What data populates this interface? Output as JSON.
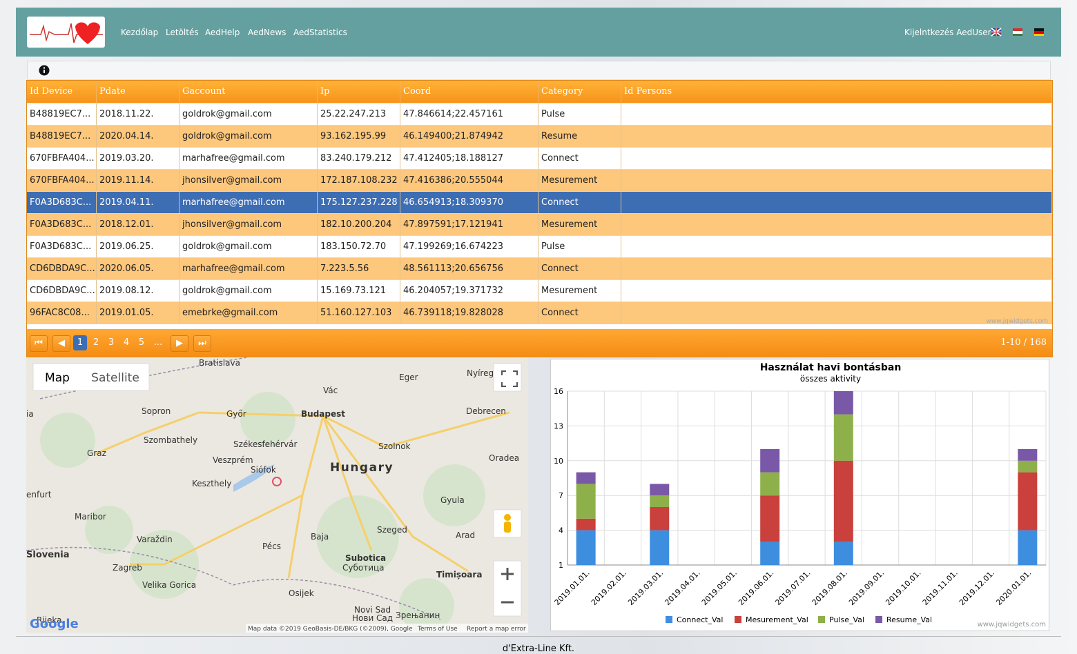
{
  "nav": {
    "links": [
      "Kezdőlap",
      "Letöltés",
      "AedHelp",
      "AedNews",
      "AedStatistics"
    ],
    "logout": "Kijelntkezés AedUser"
  },
  "table": {
    "columns": [
      "Id Device",
      "Pdate",
      "Gaccount",
      "Ip",
      "Coord",
      "Category",
      "Id Persons"
    ],
    "rows": [
      [
        "B48819EC7...",
        "2018.11.22.",
        "goldrok@gmail.com",
        "25.22.247.213",
        "47.846614;22.457161",
        "Pulse",
        ""
      ],
      [
        "B48819EC7...",
        "2020.04.14.",
        "goldrok@gmail.com",
        "93.162.195.99",
        "46.149400;21.874942",
        "Resume",
        ""
      ],
      [
        "670FBFA404...",
        "2019.03.20.",
        "marhafree@gmail.com",
        "83.240.179.212",
        "47.412405;18.188127",
        "Connect",
        ""
      ],
      [
        "670FBFA404...",
        "2019.11.14.",
        "jhonsilver@gmail.com",
        "172.187.108.232",
        "47.416386;20.555044",
        "Mesurement",
        ""
      ],
      [
        "F0A3D683C...",
        "2019.04.11.",
        "marhafree@gmail.com",
        "175.127.237.228",
        "46.654913;18.309370",
        "Connect",
        ""
      ],
      [
        "F0A3D683C...",
        "2018.12.01.",
        "jhonsilver@gmail.com",
        "182.10.200.204",
        "47.897591;17.121941",
        "Mesurement",
        ""
      ],
      [
        "F0A3D683C...",
        "2019.06.25.",
        "goldrok@gmail.com",
        "183.150.72.70",
        "47.199269;16.674223",
        "Pulse",
        ""
      ],
      [
        "CD6DBDA9C...",
        "2020.06.05.",
        "marhafree@gmail.com",
        "7.223.5.56",
        "48.561113;20.656756",
        "Connect",
        ""
      ],
      [
        "CD6DBDA9C...",
        "2019.08.12.",
        "goldrok@gmail.com",
        "15.169.73.121",
        "46.204057;19.371732",
        "Mesurement",
        ""
      ],
      [
        "96FAC8C08...",
        "2019.01.05.",
        "emebrke@gmail.com",
        "51.160.127.103",
        "46.739118;19.828028",
        "Connect",
        ""
      ]
    ],
    "watermark": "www.jqwidgets.com",
    "pages": [
      "1",
      "2",
      "3",
      "4",
      "5",
      "..."
    ],
    "range": "1-10 / 168"
  },
  "map": {
    "tabs": [
      "Map",
      "Satellite"
    ],
    "labels": [
      "Bratislava",
      "Vác",
      "Győr",
      "Budapest",
      "Debrecen",
      "Sopron",
      "Szombathely",
      "Székesfehérvár",
      "Szolnok",
      "Graz",
      "Veszprém",
      "Siófok",
      "Hungary",
      "Oradea",
      "Keszthely",
      "Maribor",
      "Gyula",
      "Pécs",
      "Baja",
      "Szeged",
      "Arad",
      "Varaždin",
      "Slovenia",
      "Zagreb",
      "Subotica",
      "Суботица",
      "Timișoara",
      "Osijek",
      "Novi Sad",
      "Нови Сад",
      "Зрењанин",
      "Rijeka",
      "Eger",
      "Nyíregy",
      "ia",
      "enfurt",
      "Velika Gorica"
    ],
    "google": "Google",
    "attribution": "Map data ©2019 GeoBasis-DE/BKG (©2009), Google",
    "terms": "Terms of Use",
    "report": "Report a map error"
  },
  "chart_data": {
    "type": "stacked_bar",
    "title": "Használat havi bontásban",
    "subtitle": "összes aktivity",
    "categories": [
      "2019.01.01.",
      "2019.02.01.",
      "2019.03.01.",
      "2019.04.01.",
      "2019.05.01.",
      "2019.06.01.",
      "2019.07.01.",
      "2019.08.01.",
      "2019.09.01.",
      "2019.10.01.",
      "2019.11.01.",
      "2019.12.01.",
      "2020.01.01."
    ],
    "series": [
      {
        "name": "Connect_Val",
        "color": "#3e8ee0",
        "values": [
          4,
          0,
          4,
          0,
          0,
          3,
          0,
          3,
          0,
          0,
          0,
          0,
          4
        ]
      },
      {
        "name": "Mesurement_Val",
        "color": "#c9403c",
        "values": [
          1,
          0,
          2,
          0,
          0,
          4,
          0,
          7,
          0,
          0,
          0,
          0,
          5
        ]
      },
      {
        "name": "Pulse_Val",
        "color": "#8eb04a",
        "values": [
          3,
          0,
          1,
          0,
          0,
          2,
          0,
          4,
          0,
          0,
          0,
          0,
          1
        ]
      },
      {
        "name": "Resume_Val",
        "color": "#7a58a8",
        "values": [
          1,
          0,
          1,
          0,
          0,
          2,
          0,
          2,
          0,
          0,
          0,
          0,
          1
        ]
      }
    ],
    "ylim": [
      1,
      16
    ],
    "yticks": [
      1,
      4,
      7,
      10,
      13,
      16
    ],
    "grid": true,
    "watermark": "www.jqwidgets.com"
  },
  "footer": "d'Extra-Line Kft."
}
